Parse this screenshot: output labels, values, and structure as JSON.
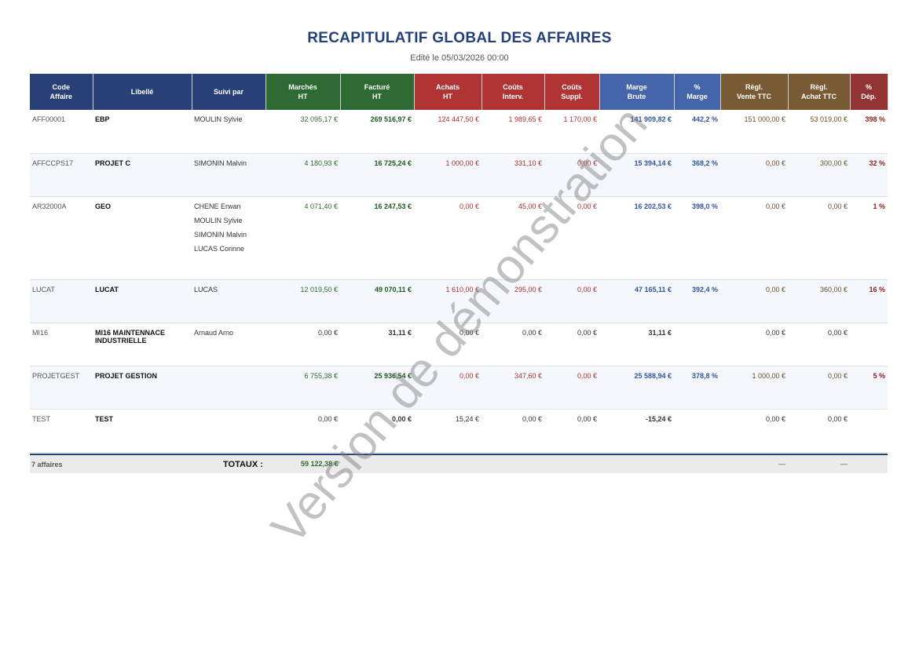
{
  "title": "RECAPITULATIF GLOBAL DES AFFAIRES",
  "subtitle": "Edité le 05/03/2026 00:00",
  "colors": {
    "navy": "#283f78",
    "green": "#2e6b34",
    "red": "#b03434",
    "blue": "#4565aa",
    "brown": "#785a34",
    "darkred": "#923434"
  },
  "headers": [
    {
      "l1": "Code",
      "l2": "Affaire",
      "color": "#283f78"
    },
    {
      "l1": "Libellé",
      "l2": "",
      "color": "#283f78"
    },
    {
      "l1": "Suivi par",
      "l2": "",
      "color": "#283f78"
    },
    {
      "l1": "Marchés",
      "l2": "HT",
      "color": "#2e6b34"
    },
    {
      "l1": "Facturé",
      "l2": "HT",
      "color": "#2e6b34"
    },
    {
      "l1": "Achats",
      "l2": "HT",
      "color": "#b03434"
    },
    {
      "l1": "Coûts",
      "l2": "Interv.",
      "color": "#b03434"
    },
    {
      "l1": "Coûts",
      "l2": "Suppl.",
      "color": "#b03434"
    },
    {
      "l1": "Marge",
      "l2": "Brute",
      "color": "#4565aa"
    },
    {
      "l1": "%",
      "l2": "Marge",
      "color": "#4565aa"
    },
    {
      "l1": "Règl.",
      "l2": "Vente TTC",
      "color": "#785a34"
    },
    {
      "l1": "Règl.",
      "l2": "Achat TTC",
      "color": "#785a34"
    },
    {
      "l1": "%",
      "l2": "Dép.",
      "color": "#923434"
    }
  ],
  "rows": [
    {
      "code": "AFF00001",
      "libelle": "EBP",
      "suivi": [
        "MOULIN Sylvie"
      ],
      "marches": "32 095,17 €",
      "facture": "269 516,97 €",
      "achats": "124 447,50 €",
      "interv": "1 989,65 €",
      "suppl": "1 170,00 €",
      "marge": "141 909,82 €",
      "pct_marge": "442,2 %",
      "regl_vente": "151 000,00 €",
      "regl_achat": "53 019,00 €",
      "pct_dep": "398 %"
    },
    {
      "code": "AFFCCPS17",
      "libelle": "PROJET C",
      "suivi": [
        "SIMONIN Malvin"
      ],
      "marches": "4 180,93 €",
      "facture": "16 725,24 €",
      "achats": "1 000,00 €",
      "interv": "331,10 €",
      "suppl": "0,00 €",
      "marge": "15 394,14 €",
      "pct_marge": "368,2 %",
      "regl_vente": "0,00 €",
      "regl_achat": "300,00 €",
      "pct_dep": "32 %"
    },
    {
      "code": "AR32000A",
      "libelle": "GEO",
      "suivi": [
        "CHENE Erwan",
        "MOULIN Sylvie",
        "SIMONIN Malvin",
        "LUCAS Corinne"
      ],
      "marches": "4 071,40 €",
      "facture": "16 247,53 €",
      "achats": "0,00 €",
      "interv": "45,00 €",
      "suppl": "0,00 €",
      "marge": "16 202,53 €",
      "pct_marge": "398,0 %",
      "regl_vente": "0,00 €",
      "regl_achat": "0,00 €",
      "pct_dep": "1 %"
    },
    {
      "code": "LUCAT",
      "libelle": "LUCAT",
      "suivi": [
        "LUCAS"
      ],
      "marches": "12 019,50 €",
      "facture": "49 070,11 €",
      "achats": "1 610,00 €",
      "interv": "295,00 €",
      "suppl": "0,00 €",
      "marge": "47 165,11 €",
      "pct_marge": "392,4 %",
      "regl_vente": "0,00 €",
      "regl_achat": "360,00 €",
      "pct_dep": "16 %"
    },
    {
      "code": "MI16",
      "libelle": "MI16 MAINTENNACE INDUSTRIELLE",
      "suivi": [
        "Arnaud Arno"
      ],
      "marches": "0,00 €",
      "facture": "31,11 €",
      "achats": "0,00 €",
      "interv": "0,00 €",
      "suppl": "0,00 €",
      "marge": "31,11 €",
      "pct_marge": "",
      "regl_vente": "0,00 €",
      "regl_achat": "0,00 €",
      "pct_dep": "",
      "muted": true
    },
    {
      "code": "PROJETGEST",
      "libelle": "PROJET GESTION",
      "suivi": [],
      "marches": "6 755,38 €",
      "facture": "25 936,54 €",
      "achats": "0,00 €",
      "interv": "347,60 €",
      "suppl": "0,00 €",
      "marge": "25 588,94 €",
      "pct_marge": "378,8 %",
      "regl_vente": "1 000,00 €",
      "regl_achat": "0,00 €",
      "pct_dep": "5 %"
    },
    {
      "code": "TEST",
      "libelle": "TEST",
      "suivi": [],
      "marches": "0,00 €",
      "facture": "0,00 €",
      "achats": "15,24 €",
      "interv": "0,00 €",
      "suppl": "0,00 €",
      "marge": "-15,24 €",
      "pct_marge": "",
      "regl_vente": "0,00 €",
      "regl_achat": "0,00 €",
      "pct_dep": "",
      "muted": true
    }
  ],
  "totals": {
    "count": "7 affaires",
    "label": "TOTAUX :",
    "marches": "59 122,38 €",
    "regl_vente": "—",
    "regl_achat": "—"
  },
  "watermark": "Version de démonstration"
}
